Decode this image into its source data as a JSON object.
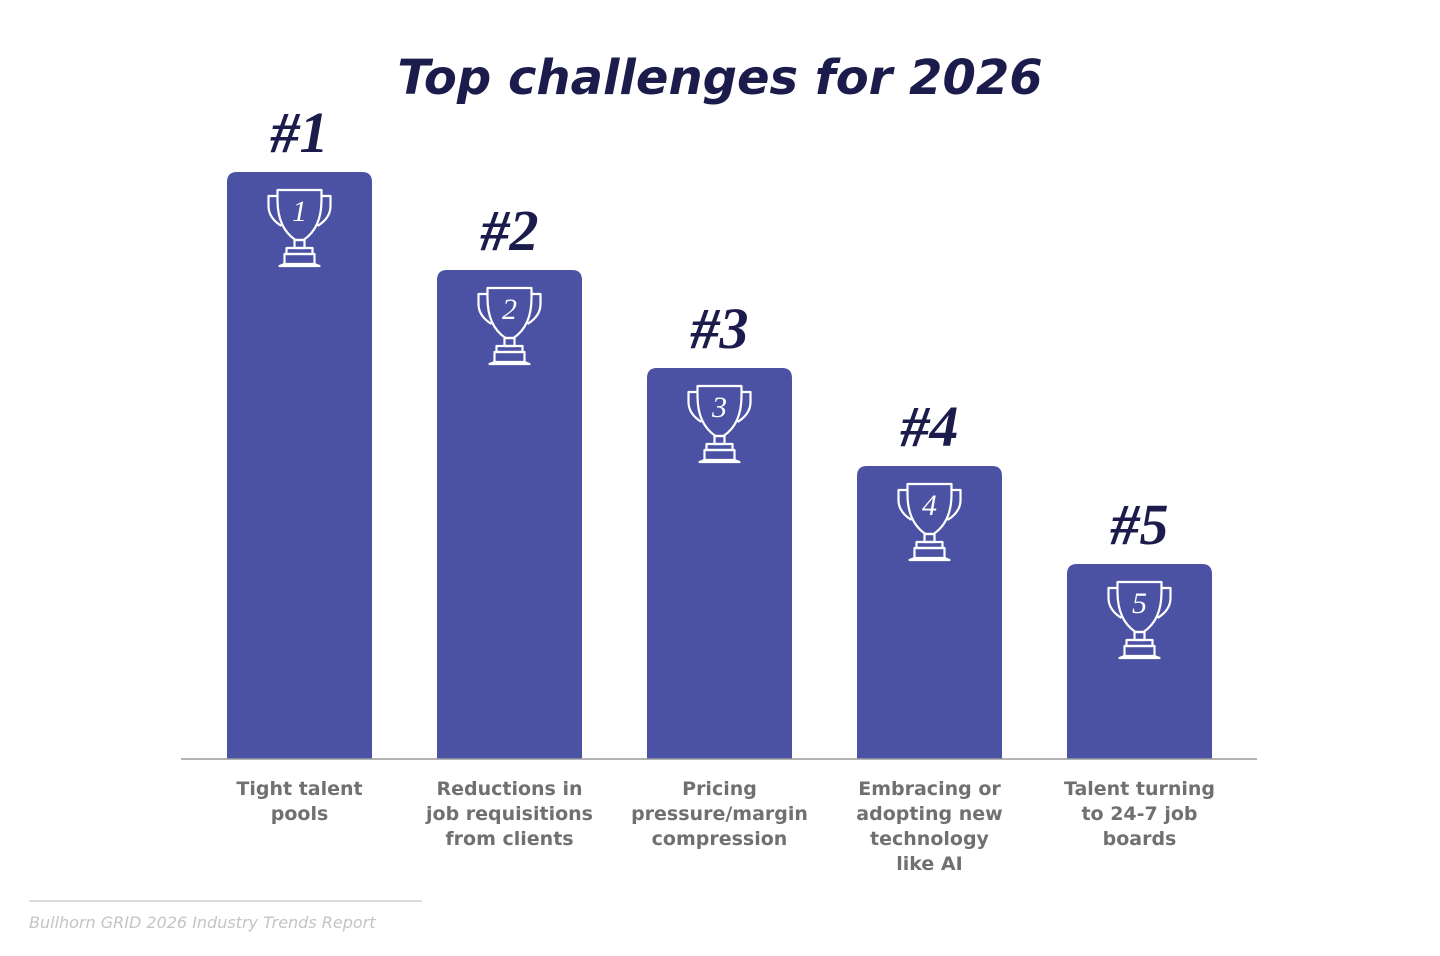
{
  "chart_data": {
    "type": "bar",
    "title": "Top challenges for 2026",
    "categories": [
      [
        "Tight talent",
        "pools"
      ],
      [
        "Reductions in",
        "job requisitions",
        "from clients"
      ],
      [
        "Pricing",
        "pressure/margin",
        "compression"
      ],
      [
        "Embracing or",
        "adopting new",
        "technology",
        "like AI"
      ],
      [
        "Talent turning",
        "to 24-7 job",
        "boards"
      ]
    ],
    "rank_labels": [
      "#1",
      "#2",
      "#3",
      "#4",
      "#5"
    ],
    "trophy_numbers": [
      "1",
      "2",
      "3",
      "4",
      "5"
    ],
    "ranks": [
      1,
      2,
      3,
      4,
      5
    ],
    "xlabel": "",
    "ylabel": "",
    "grid": false,
    "bar_color": "#4b52a3",
    "title_color": "#1b1c4b"
  },
  "source": "Bullhorn GRID 2026 Industry Trends Report"
}
